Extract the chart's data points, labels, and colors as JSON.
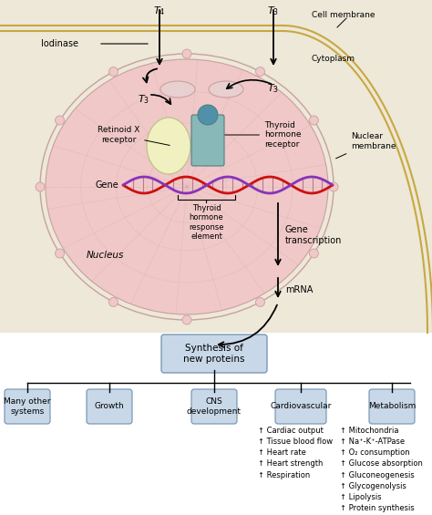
{
  "bg_color": "#f0ebe0",
  "cell_bg": "#ede8d8",
  "nucleus_color": "#f0c8c8",
  "nuclear_membrane_color": "#c8a0a0",
  "box_color": "#c8d8e8",
  "box_edge": "#7090b0",
  "labels": {
    "cell_membrane": "Cell membrane",
    "cytoplasm": "Cytoplasm",
    "nuclear_membrane": "Nuclear\nmembrane",
    "nucleus": "Nucleus",
    "iodinase": "Iodinase",
    "gene": "Gene",
    "thyroid_hormone_receptor": "Thyroid\nhormone\nreceptor",
    "retinoid_x_receptor": "Retinoid X\nreceptor",
    "thyroid_response_element": "Thyroid\nhormone\nresponse\nelement",
    "gene_transcription": "Gene\ntranscription",
    "mrna": "mRNA",
    "synthesis": "Synthesis of\nnew proteins",
    "many_other": "Many other\nsystems",
    "growth": "Growth",
    "cns": "CNS\ndevelopment",
    "cardiovascular": "Cardiovascular",
    "metabolism": "Metabolism",
    "cardio_items": "↑ Cardiac output\n↑ Tissue blood flow\n↑ Heart rate\n↑ Heart strength\n↑ Respiration",
    "metabolism_items": "↑ Mitochondria\n↑ Na⁺-K⁺-ATPase\n↑ O₂ consumption\n↑ Glucose absorption\n↑ Gluconeogenesis\n↑ Glycogenolysis\n↑ Lipolysis\n↑ Protein synthesis\n↑ BMR"
  }
}
